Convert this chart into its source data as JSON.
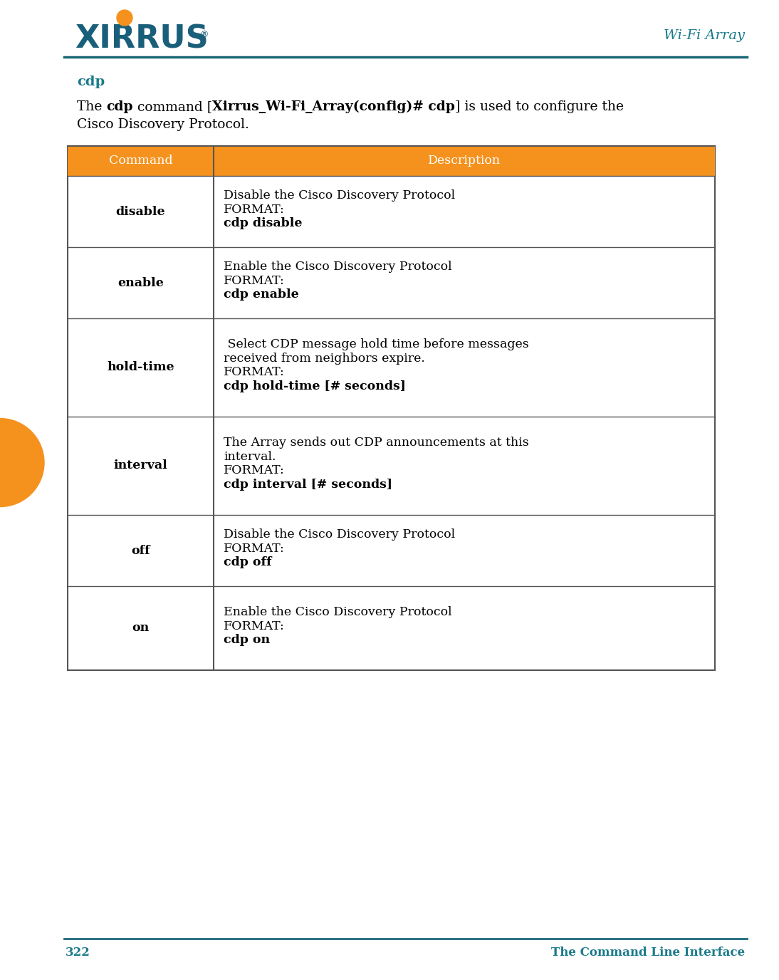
{
  "page_title": "Wi-Fi Array",
  "page_number": "322",
  "page_footer_right": "The Command Line Interface",
  "section_title": "cdp",
  "section_title_color": "#1a7a8a",
  "header_bg_color": "#F5921E",
  "header_text_color": "#ffffff",
  "table_border_color": "#555555",
  "col1_header": "Command",
  "col2_header": "Description",
  "rows": [
    {
      "command": "disable",
      "desc_line1": "Disable the Cisco Discovery Protocol",
      "desc_line1b": "",
      "desc_line2": "FORMAT:",
      "desc_line3": "cdp disable"
    },
    {
      "command": "enable",
      "desc_line1": "Enable the Cisco Discovery Protocol",
      "desc_line1b": "",
      "desc_line2": "FORMAT:",
      "desc_line3": "cdp enable"
    },
    {
      "command": "hold-time",
      "desc_line1": " Select CDP message hold time before messages",
      "desc_line1b": "received from neighbors expire.",
      "desc_line2": "FORMAT:",
      "desc_line3": "cdp hold-time [# seconds]"
    },
    {
      "command": "interval",
      "desc_line1": "The Array sends out CDP announcements at this",
      "desc_line1b": "interval.",
      "desc_line2": "FORMAT:",
      "desc_line3": "cdp interval [# seconds]"
    },
    {
      "command": "off",
      "desc_line1": "Disable the Cisco Discovery Protocol",
      "desc_line1b": "",
      "desc_line2": "FORMAT:",
      "desc_line3": "cdp off"
    },
    {
      "command": "on",
      "desc_line1": "Enable the Cisco Discovery Protocol",
      "desc_line1b": "",
      "desc_line2": "FORMAT:",
      "desc_line3": "cdp on"
    }
  ],
  "header_line_color": "#1a6878",
  "logo_color": "#1a5f7a",
  "orange_color": "#F5921E",
  "teal_color": "#1a7a8a",
  "text_color": "#000000"
}
